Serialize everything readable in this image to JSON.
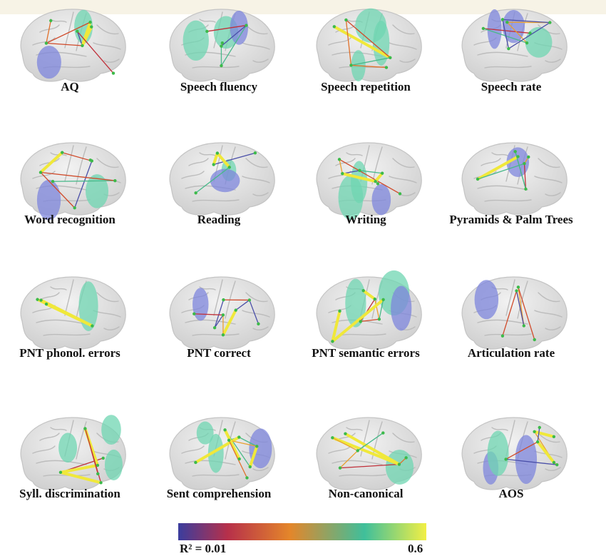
{
  "panels": [
    {
      "label": "AQ"
    },
    {
      "label": "Speech fluency"
    },
    {
      "label": "Speech repetition"
    },
    {
      "label": "Speech rate"
    },
    {
      "label": "Word recognition"
    },
    {
      "label": "Reading"
    },
    {
      "label": "Writing"
    },
    {
      "label": "Pyramids & Palm Trees"
    },
    {
      "label": "PNT phonol. errors"
    },
    {
      "label": "PNT correct"
    },
    {
      "label": "PNT semantic errors"
    },
    {
      "label": "Articulation rate"
    },
    {
      "label": "Syll. discrimination"
    },
    {
      "label": "Sent comprehension"
    },
    {
      "label": "Non-canonical"
    },
    {
      "label": "AOS"
    }
  ],
  "colorbar": {
    "min_label": "R² = 0.01",
    "max_label": "0.6"
  }
}
